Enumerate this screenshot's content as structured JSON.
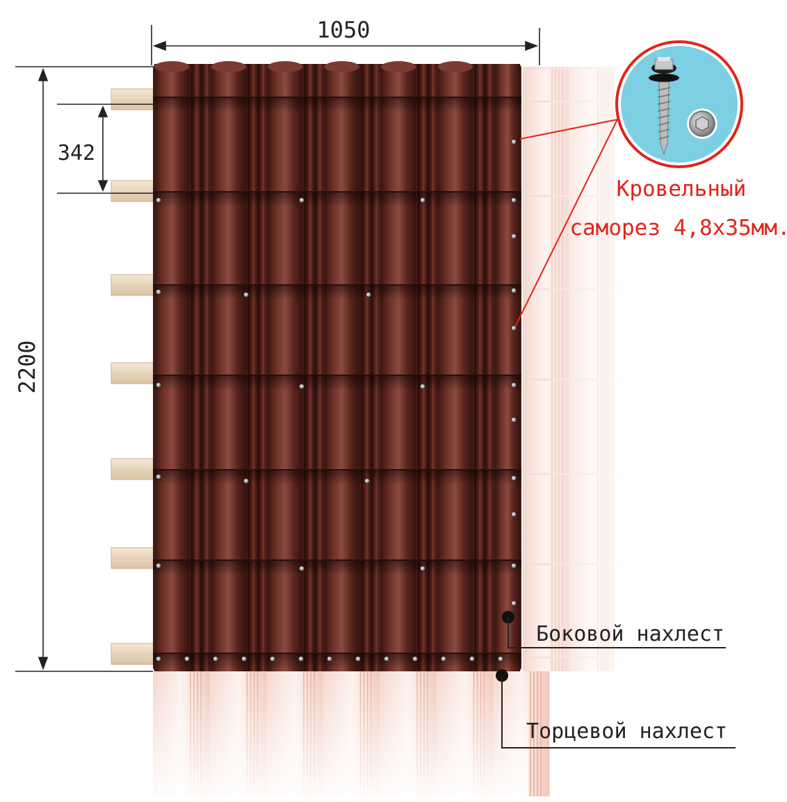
{
  "dimensions": {
    "width_label": "1050",
    "height_label": "2200",
    "batten_step_label": "342"
  },
  "callouts": {
    "screw_line1": "Кровельный",
    "screw_line2": "саморез 4,8х35мм.",
    "side_overlap": "Боковой нахлест",
    "end_overlap": "Торцевой нахлест"
  },
  "icons": {
    "screw": "roofing-screw-icon",
    "screw_head": "screw-head-icon"
  },
  "colors": {
    "sheet": "#5e2a23",
    "sheet_highlight": "#8a4a40",
    "sheet_shadow": "#3a1511",
    "ghost_sheet": "#f2c9bd",
    "batten": "#ead8bf",
    "callout_red": "#e2231a",
    "dimension_line": "#222222",
    "inset_background": "#7dcfe3"
  }
}
